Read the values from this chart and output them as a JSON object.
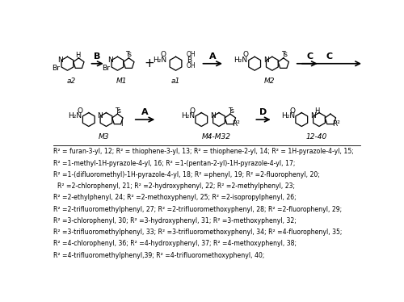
{
  "bg_color": "#ffffff",
  "line1": "R² = furan-3-yl, 12; R² = thiophene-3-yl, 13; R² = thiophene-2-yl, 14; R² = 1H-pyrazole-4-yl, 15;",
  "line2": "R² =1-methyl-1H-pyrazole-4-yl, 16; R² =1-(pentan-2-yl)-1H-pyrazole-4-yl, 17;",
  "line3": "R² =1-(difluoromethyl)-1H-pyrazole-4-yl, 18; R² =phenyl, 19; R² =2-fluorophenyl, 20;",
  "line4": "  R² =2-chlorophenyl, 21; R² =2-hydroxyphenyl, 22; R² =2-methylphenyl, 23;",
  "line5": "R² =2-ethylphenyl, 24; R² =2-methoxyphenyl, 25; R² =2-isopropylphenyl, 26;",
  "line6": "R² =2-trifluoromethylphenyl, 27; R² =2-trifluoromethoxyphenyl, 28; R² =2-fluorophenyl, 29;",
  "line7": "R² =3-chlorophenyl, 30; R² =3-hydroxyphenyl, 31; R² =3-methoxyphenyl, 32;",
  "line8": "R² =3-trifluoromethylphenyl, 33; R² =3-trifluoromethoxyphenyl, 34; R² =4-fluorophenyl, 35;",
  "line9": "R² =4-chlorophenyl, 36; R² =4-hydroxyphenyl, 37; R² =4-methoxyphenyl, 38;",
  "line10": "R² =4-trifluoromethylphenyl,39; R² =4-trifluoromethoxyphenyl, 40;"
}
